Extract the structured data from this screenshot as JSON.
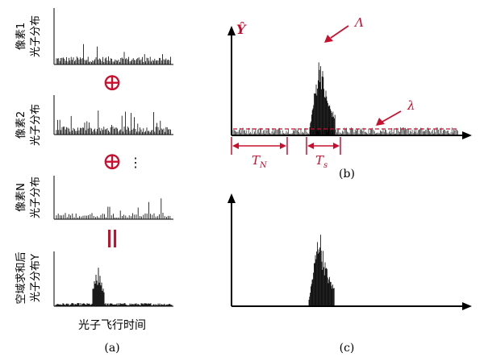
{
  "panel_a": {
    "rows": [
      {
        "label_top": "像素1",
        "label_bottom": "光子分布"
      },
      {
        "label_top": "像素2",
        "label_bottom": "光子分布"
      },
      {
        "label_top": "像素N",
        "label_bottom": "光子分布"
      },
      {
        "label_top": "空域求和后",
        "label_bottom": "光子分布Y"
      }
    ],
    "plus_symbol": "⊕",
    "dots": "⋮",
    "equals_symbol": "||",
    "xlabel": "光子飞行时间",
    "caption": "(a)"
  },
  "panel_b": {
    "ylabel": "Ŷ",
    "peak_label": "Λ",
    "noise_label": "λ",
    "tn_label": "T",
    "tn_sub": "N",
    "ts_label": "T",
    "ts_sub": "s",
    "caption": "(b)"
  },
  "panel_c": {
    "caption": "(c)"
  },
  "colors": {
    "accent": "#c8102e",
    "ink": "#000000"
  }
}
